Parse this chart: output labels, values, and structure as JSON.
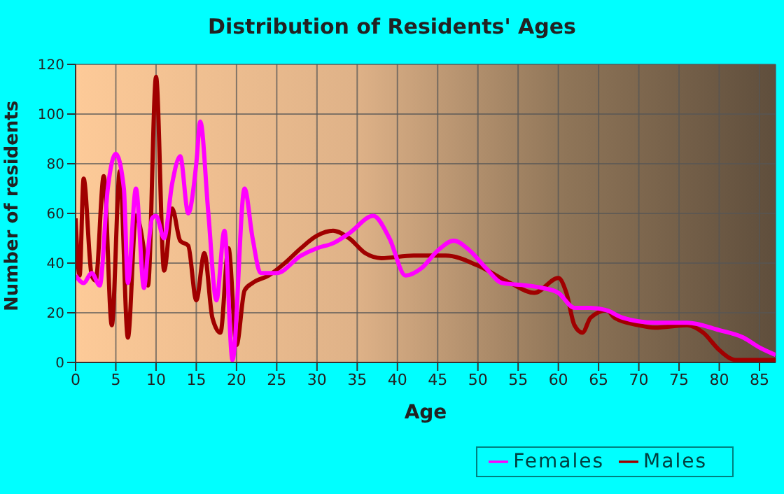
{
  "chart_data": {
    "type": "line",
    "title": "Distribution of Residents' Ages",
    "xlabel": "Age",
    "ylabel": "Number of residents",
    "xlim": [
      0,
      87
    ],
    "xticks": [
      0,
      5,
      10,
      15,
      20,
      25,
      30,
      35,
      40,
      45,
      50,
      55,
      60,
      65,
      70,
      75,
      80,
      85
    ],
    "ylim": [
      0,
      120
    ],
    "yticks": [
      0,
      20,
      40,
      60,
      80,
      100,
      120
    ],
    "grid": true,
    "legend": "bottom right",
    "series": [
      {
        "name": "Males",
        "color": "#a00000",
        "x": [
          0,
          0.5,
          1,
          2,
          2.5,
          3.5,
          4.5,
          5.5,
          6.5,
          7.5,
          8.5,
          9,
          10,
          11,
          12,
          13,
          14,
          15,
          16,
          17,
          18,
          19,
          20,
          21,
          22,
          24,
          26,
          28,
          30,
          32,
          34,
          36,
          38,
          42,
          46,
          50,
          54,
          57,
          60,
          61,
          62,
          63,
          64,
          66,
          67,
          70,
          72,
          76,
          78,
          80,
          82,
          84,
          87
        ],
        "values": [
          58,
          35,
          74,
          35,
          33,
          75,
          15,
          77,
          10,
          59,
          45,
          31,
          115,
          37,
          62,
          49,
          47,
          25,
          44,
          18,
          12,
          46,
          7,
          29,
          32,
          35,
          40,
          46,
          51,
          53,
          50,
          44,
          42,
          43,
          43,
          39,
          32,
          28,
          34,
          28,
          15,
          12,
          18,
          21,
          18,
          15,
          14,
          15,
          12,
          5,
          1,
          1,
          1
        ]
      },
      {
        "name": "Females",
        "color": "#ff00ff",
        "x": [
          0,
          1,
          2,
          3,
          4,
          5,
          6,
          6.5,
          7.5,
          8.5,
          9,
          9.5,
          10,
          11,
          12,
          13,
          14,
          15,
          15.5,
          16.5,
          17.5,
          18.5,
          19.5,
          21,
          22,
          23,
          25,
          28,
          30,
          32,
          34,
          37,
          39,
          41,
          43,
          45,
          47,
          49,
          51,
          53,
          56,
          58,
          60,
          62,
          64,
          66,
          68,
          72,
          76,
          80,
          83,
          85,
          87
        ],
        "values": [
          35,
          32,
          36,
          31,
          70,
          84,
          70,
          32,
          70,
          30,
          45,
          58,
          59,
          50,
          72,
          83,
          60,
          80,
          97,
          60,
          25,
          53,
          1,
          70,
          50,
          36,
          36,
          43,
          46,
          48,
          52,
          59,
          50,
          35,
          38,
          45,
          49,
          45,
          38,
          32,
          31,
          30,
          28,
          22,
          22,
          21,
          18,
          16,
          16,
          13,
          10,
          6,
          3
        ]
      }
    ]
  }
}
